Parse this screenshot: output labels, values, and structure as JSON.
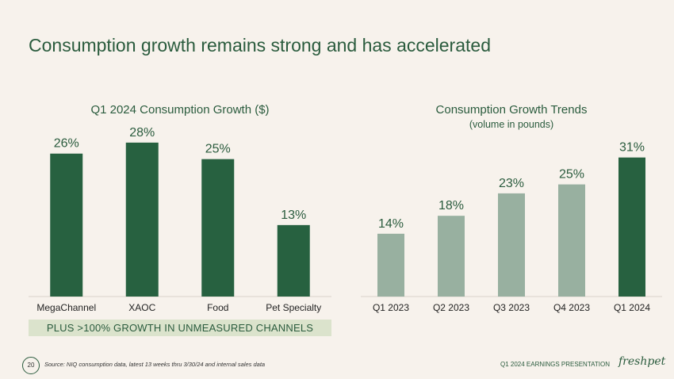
{
  "slide": {
    "title": "Consumption growth remains strong and has accelerated",
    "banner": "PLUS >100% GROWTH IN UNMEASURED CHANNELS",
    "page_number": "20",
    "source_note": "Source:  NIQ consumption data, latest 13 weeks thru 3/30/24 and internal sales data",
    "deck_label": "Q1 2024 EARNINGS PRESENTATION",
    "logo_text": "freshpet"
  },
  "colors": {
    "dark_green": "#276140",
    "light_green": "#98b0a0",
    "text_green": "#2a5b3d",
    "background": "#f7f2ec"
  },
  "chart_data": [
    {
      "type": "bar",
      "title": "Q1 2024 Consumption Growth ($)",
      "subtitle": "",
      "categories": [
        "MegaChannel",
        "XAOC",
        "Food",
        "Pet Specialty"
      ],
      "values": [
        26,
        28,
        25,
        13
      ],
      "value_labels": [
        "26%",
        "28%",
        "25%",
        "13%"
      ],
      "bar_colors": [
        "#276140",
        "#276140",
        "#276140",
        "#276140"
      ],
      "xlabel": "",
      "ylabel": "",
      "ylim": [
        0,
        30
      ]
    },
    {
      "type": "bar",
      "title": "Consumption Growth Trends",
      "subtitle": "(volume in pounds)",
      "categories": [
        "Q1 2023",
        "Q2 2023",
        "Q3 2023",
        "Q4 2023",
        "Q1 2024"
      ],
      "values": [
        14,
        18,
        23,
        25,
        31
      ],
      "value_labels": [
        "14%",
        "18%",
        "23%",
        "25%",
        "31%"
      ],
      "bar_colors": [
        "#98b0a0",
        "#98b0a0",
        "#98b0a0",
        "#98b0a0",
        "#276140"
      ],
      "xlabel": "",
      "ylabel": "",
      "ylim": [
        0,
        35
      ]
    }
  ]
}
